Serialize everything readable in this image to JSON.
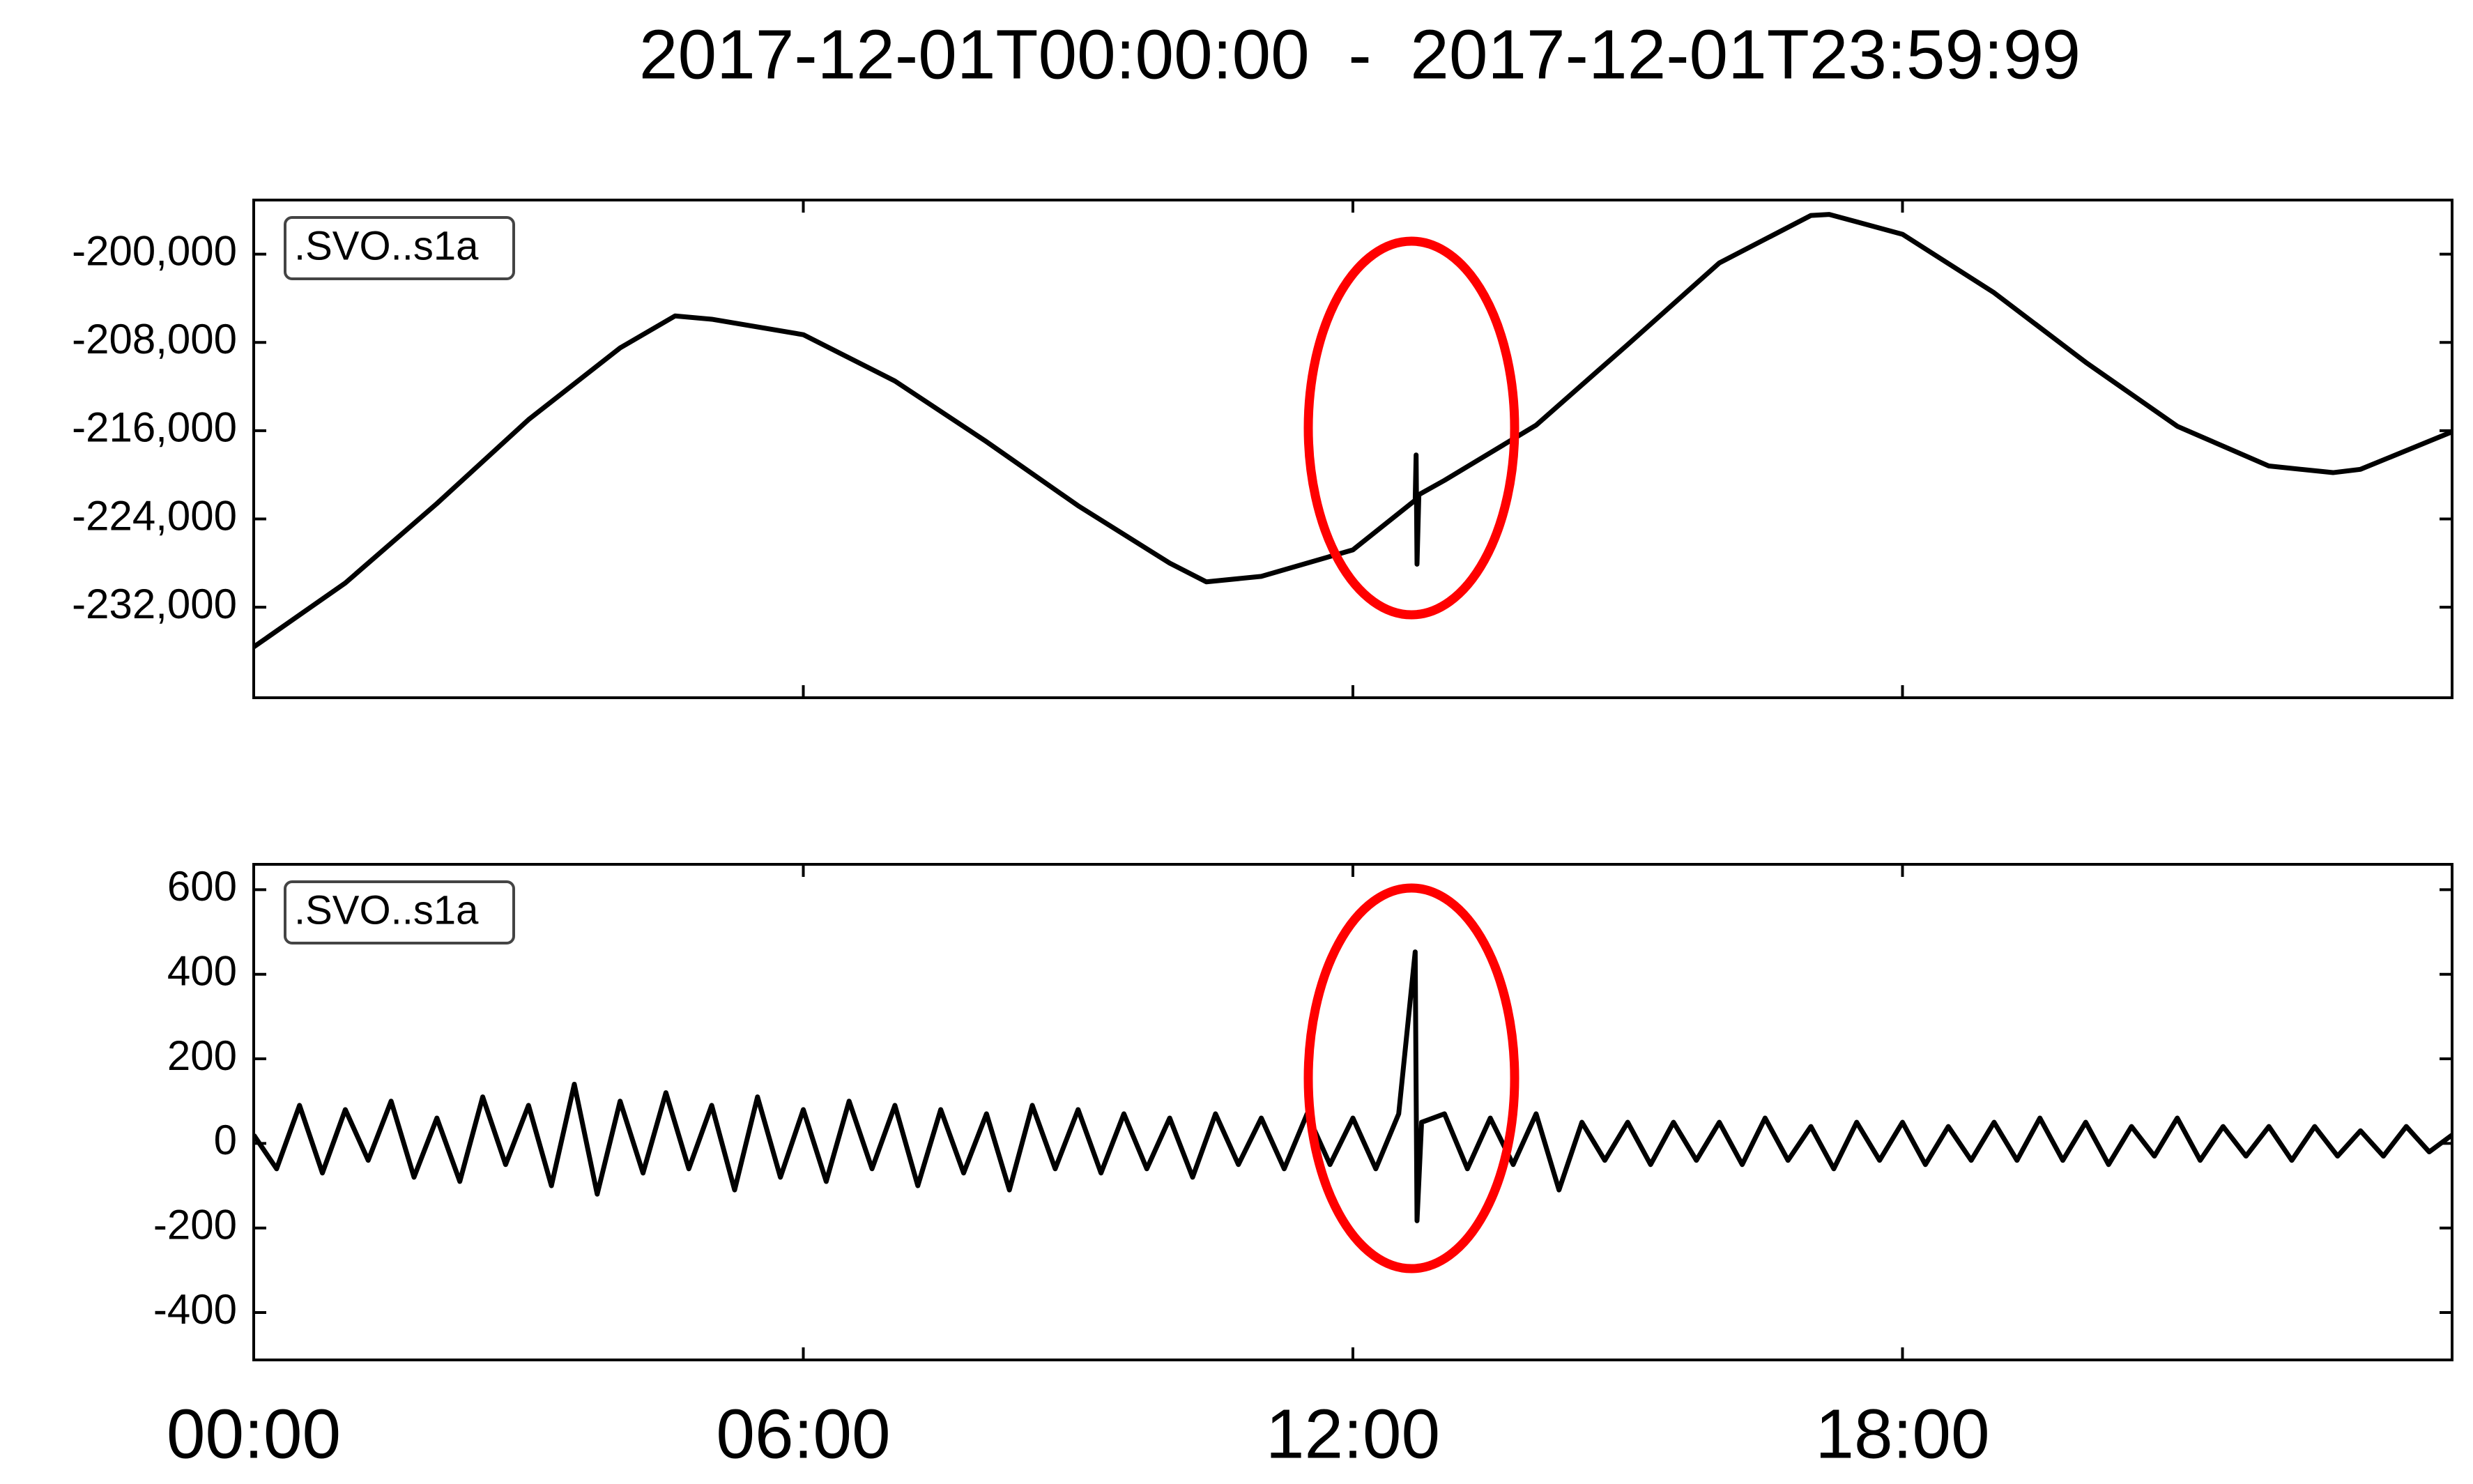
{
  "title": "2017-12-01T00:00:00  -  2017-12-01T23:59:99",
  "chart_data": [
    {
      "type": "line",
      "xlim": [
        0,
        24
      ],
      "ylim": [
        -240200,
        -195100
      ],
      "yticks": [
        {
          "value": -200000,
          "label": "-200,000"
        },
        {
          "value": -208000,
          "label": "-208,000"
        },
        {
          "value": -216000,
          "label": "-216,000"
        },
        {
          "value": -224000,
          "label": "-224,000"
        },
        {
          "value": -232000,
          "label": "-232,000"
        }
      ],
      "x": [
        0,
        1,
        2,
        3,
        4,
        4.6,
        5,
        6,
        7,
        8,
        9,
        10,
        10.4,
        11,
        12,
        12.68,
        12.69,
        12.7,
        12.72,
        13,
        14,
        15,
        16,
        17,
        17.2,
        18,
        19,
        20,
        21,
        22,
        22.7,
        23,
        24
      ],
      "series": [
        {
          "name": ".SVO..s1a",
          "color": "#000000",
          "values": [
            -235600,
            -229800,
            -222600,
            -215000,
            -208500,
            -205600,
            -205900,
            -207300,
            -211500,
            -217000,
            -222800,
            -228000,
            -229700,
            -229200,
            -226800,
            -222300,
            -218200,
            -228100,
            -221800,
            -220500,
            -215500,
            -208200,
            -200800,
            -196500,
            -196400,
            -198200,
            -203500,
            -209800,
            -215600,
            -219200,
            -219800,
            -219500,
            -216100
          ]
        }
      ]
    },
    {
      "type": "line",
      "xlim": [
        0,
        24
      ],
      "ylim": [
        -512,
        660
      ],
      "yticks": [
        600,
        400,
        200,
        0,
        -200,
        -400
      ],
      "xticks": [
        {
          "value": 0,
          "label": "00:00"
        },
        {
          "value": 6,
          "label": "06:00"
        },
        {
          "value": 12,
          "label": "12:00"
        },
        {
          "value": 18,
          "label": "18:00"
        }
      ],
      "x": [
        0,
        0.25,
        0.5,
        0.75,
        1,
        1.25,
        1.5,
        1.75,
        2,
        2.25,
        2.5,
        2.75,
        3,
        3.25,
        3.5,
        3.75,
        4,
        4.25,
        4.5,
        4.75,
        5,
        5.25,
        5.5,
        5.75,
        6,
        6.25,
        6.5,
        6.75,
        7,
        7.25,
        7.5,
        7.75,
        8,
        8.25,
        8.5,
        8.75,
        9,
        9.25,
        9.5,
        9.75,
        10,
        10.25,
        10.5,
        10.75,
        11,
        11.25,
        11.5,
        11.75,
        12,
        12.25,
        12.5,
        12.68,
        12.7,
        12.75,
        13,
        13.25,
        13.5,
        13.75,
        14,
        14.25,
        14.5,
        14.75,
        15,
        15.25,
        15.5,
        15.75,
        16,
        16.25,
        16.5,
        16.75,
        17,
        17.25,
        17.5,
        17.75,
        18,
        18.25,
        18.5,
        18.75,
        19,
        19.25,
        19.5,
        19.75,
        20,
        20.25,
        20.5,
        20.75,
        21,
        21.25,
        21.5,
        21.75,
        22,
        22.25,
        22.5,
        22.75,
        23,
        23.25,
        23.5,
        23.75,
        24
      ],
      "series": [
        {
          "name": ".SVO..s1a",
          "color": "#000000",
          "values": [
            20,
            -60,
            90,
            -70,
            80,
            -40,
            100,
            -80,
            60,
            -90,
            110,
            -50,
            90,
            -100,
            140,
            -120,
            100,
            -70,
            120,
            -60,
            90,
            -110,
            110,
            -80,
            80,
            -90,
            100,
            -60,
            90,
            -100,
            80,
            -70,
            70,
            -110,
            90,
            -60,
            80,
            -70,
            70,
            -60,
            60,
            -80,
            70,
            -50,
            60,
            -60,
            70,
            -50,
            60,
            -60,
            70,
            453,
            -183,
            50,
            70,
            -60,
            60,
            -50,
            70,
            -110,
            50,
            -40,
            50,
            -50,
            50,
            -40,
            50,
            -50,
            60,
            -40,
            40,
            -60,
            50,
            -40,
            50,
            -50,
            40,
            -40,
            50,
            -40,
            60,
            -40,
            50,
            -50,
            40,
            -30,
            60,
            -40,
            40,
            -30,
            40,
            -40,
            40,
            -30,
            30,
            -30,
            40,
            -20,
            20
          ]
        }
      ]
    }
  ]
}
